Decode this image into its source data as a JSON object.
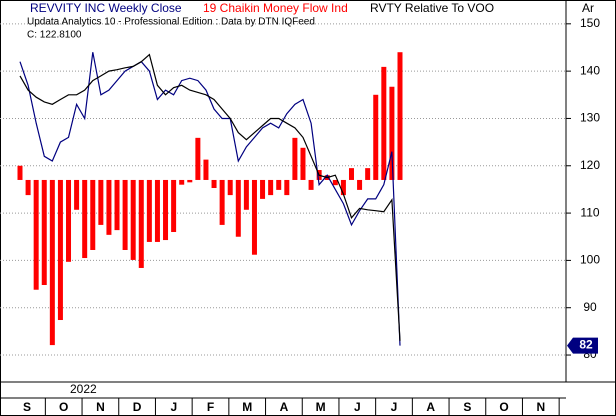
{
  "chart_data": {
    "type": "line",
    "axis_title": "Ar",
    "subtitle": "Updata Analytics 10 - Professional Edition : Data by DTN IQFeed",
    "annotation": "C: 122.8100",
    "year_label": "2022",
    "months": [
      "S",
      "O",
      "N",
      "D",
      "J",
      "F",
      "M",
      "A",
      "M",
      "J",
      "J",
      "A",
      "S",
      "O",
      "N"
    ],
    "ylim": [
      74.3,
      154.4
    ],
    "yticks": [
      80,
      90,
      100,
      110,
      120,
      130,
      140,
      150
    ],
    "grid": true,
    "bar_baseline": 117,
    "series": [
      {
        "name": "REVVITY INC Weekly Close",
        "type": "line",
        "color": "#000080",
        "values": [
          142,
          137,
          129,
          122,
          121,
          125,
          126,
          133,
          130,
          144,
          135,
          136,
          138,
          140,
          141,
          142,
          140,
          134,
          136,
          135,
          138,
          138.5,
          138,
          136,
          132,
          130,
          130,
          121,
          124,
          126,
          128,
          129,
          128,
          131,
          133,
          134,
          129,
          116,
          118,
          115,
          112,
          107.5,
          110.5,
          113,
          113,
          116,
          123,
          82
        ]
      },
      {
        "name": "19 Chaikin Money Flow Ind",
        "type": "bar",
        "color": "#ff0000",
        "values": [
          120,
          113.8,
          93.8,
          94.8,
          82.1,
          87.4,
          99.7,
          110.7,
          100.5,
          102.2,
          107.5,
          105.4,
          106.4,
          102.2,
          100.1,
          98.4,
          103.9,
          103.9,
          104.3,
          106,
          116,
          116.5,
          125.9,
          121.3,
          115.3,
          107.5,
          113.8,
          105,
          110.7,
          101.2,
          113,
          113.8,
          114.9,
          113.8,
          125.9,
          123.8,
          114.9,
          119.1,
          118,
          115.9,
          113.8,
          119.5,
          114.9,
          119.5,
          135,
          140.9,
          136.7,
          144
        ]
      },
      {
        "name": "RVTY Relative To VOO",
        "type": "line",
        "color": "#000000",
        "values": [
          139,
          136,
          134.5,
          133.5,
          133,
          134,
          135,
          135,
          136,
          138,
          139,
          140,
          140.3,
          140.7,
          141,
          142,
          143.5,
          137,
          135,
          136.5,
          137,
          136,
          135.5,
          135,
          134,
          132,
          130,
          127,
          125.5,
          127,
          128.5,
          130,
          130,
          129,
          128,
          126,
          122,
          118,
          117.5,
          118,
          114,
          109,
          111,
          110.7,
          110.5,
          110.3,
          112.8,
          83
        ]
      }
    ]
  }
}
